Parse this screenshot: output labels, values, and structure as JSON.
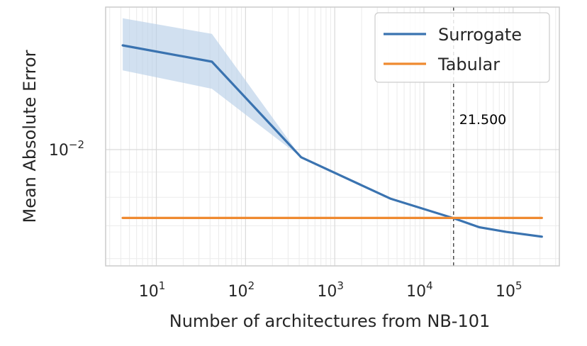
{
  "chart_data": {
    "type": "line",
    "title": "",
    "xlabel": "Number of architectures from NB-101",
    "ylabel": "Mean Absolute Error",
    "x_scale": "log",
    "y_scale": "log",
    "xlim": [
      2.7,
      330000
    ],
    "ylim": [
      0.0058,
      0.0195
    ],
    "x_ticks": [
      {
        "value": 10,
        "base": "10",
        "exp": "1"
      },
      {
        "value": 100,
        "base": "10",
        "exp": "2"
      },
      {
        "value": 1000,
        "base": "10",
        "exp": "3"
      },
      {
        "value": 10000,
        "base": "10",
        "exp": "4"
      },
      {
        "value": 100000,
        "base": "10",
        "exp": "5"
      }
    ],
    "y_ticks": [
      {
        "value": 0.01,
        "base": "10",
        "exp": "−2"
      }
    ],
    "grid": true,
    "legend_position": "top-right",
    "series": [
      {
        "name": "Surrogate",
        "color": "#3a73b0",
        "x": [
          4.2,
          42,
          420,
          4200,
          21500,
          42000,
          84000,
          210000
        ],
        "y": [
          0.0163,
          0.0151,
          0.00965,
          0.00795,
          0.00725,
          0.00695,
          0.0068,
          0.00665
        ],
        "lower": [
          0.0145,
          0.0133,
          0.00965,
          0.00795,
          0.00725,
          0.00695,
          0.0068,
          0.00665
        ],
        "upper": [
          0.0185,
          0.0172,
          0.00965,
          0.00795,
          0.00725,
          0.00695,
          0.0068,
          0.00665
        ],
        "band_color": "#b9d0e8"
      },
      {
        "name": "Tabular",
        "color": "#ef8a30",
        "x": [
          4.2,
          210000
        ],
        "y": [
          0.00726,
          0.00726
        ]
      }
    ],
    "vline": {
      "x": 21500,
      "label": "21.500",
      "color": "#333333"
    }
  }
}
